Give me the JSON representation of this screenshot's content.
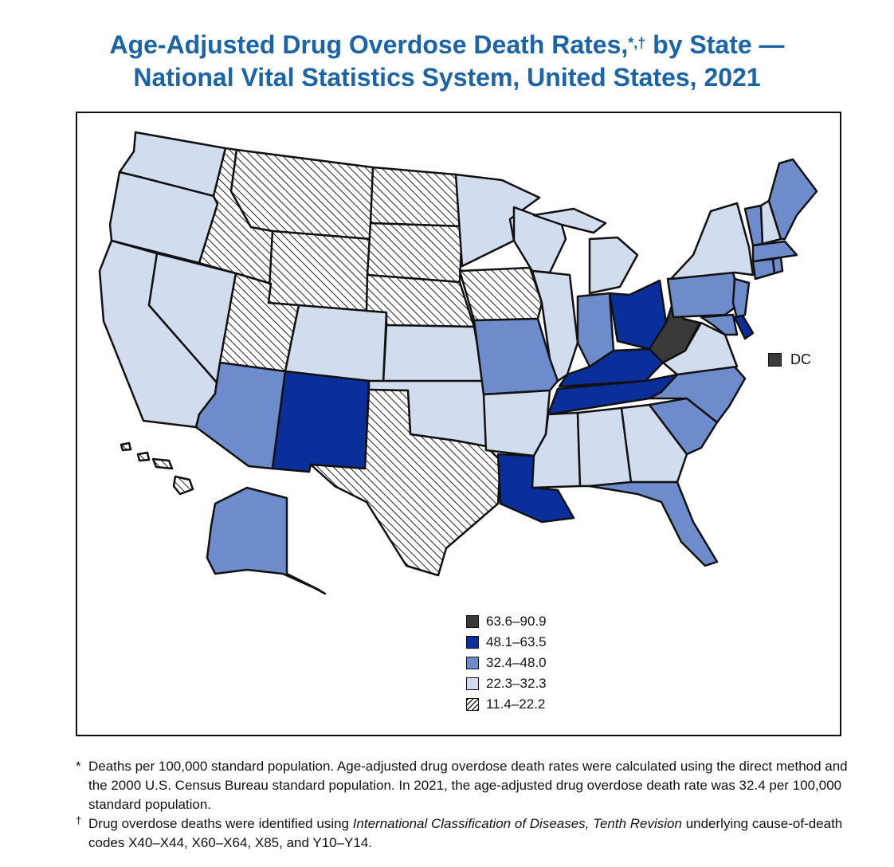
{
  "title": {
    "line1": "Age-Adjusted Drug Overdose Death Rates,",
    "line1_marks": "*,†",
    "line1_end": " by State —",
    "line2": "National Vital Statistics System, United States, 2021"
  },
  "colors": {
    "darkest": "#3a3a3a",
    "dark_blue": "#0a2f9b",
    "mid_blue": "#6e8ccb",
    "light_blue": "#d1dcef",
    "hatched": "#ffffff",
    "title": "#1b64a8"
  },
  "legend": [
    {
      "range": "63.6–90.9",
      "class": "darkest"
    },
    {
      "range": "48.1–63.5",
      "class": "dark_blue"
    },
    {
      "range": "32.4–48.0",
      "class": "mid_blue"
    },
    {
      "range": "22.3–32.3",
      "class": "light_blue"
    },
    {
      "range": "11.4–22.2",
      "class": "hatched"
    }
  ],
  "dc": {
    "label": "DC",
    "class": "darkest"
  },
  "states": {
    "WA": "light_blue",
    "OR": "light_blue",
    "CA": "light_blue",
    "NV": "light_blue",
    "ID": "hatched",
    "MT": "hatched",
    "WY": "hatched",
    "UT": "hatched",
    "AZ": "mid_blue",
    "CO": "light_blue",
    "NM": "dark_blue",
    "ND": "hatched",
    "SD": "hatched",
    "NE": "hatched",
    "KS": "light_blue",
    "OK": "light_blue",
    "TX": "hatched",
    "MN": "light_blue",
    "IA": "hatched",
    "MO": "mid_blue",
    "AR": "light_blue",
    "LA": "dark_blue",
    "WI": "light_blue",
    "IL": "light_blue",
    "MI": "light_blue",
    "IN": "mid_blue",
    "OH": "dark_blue",
    "KY": "dark_blue",
    "TN": "dark_blue",
    "MS": "light_blue",
    "AL": "light_blue",
    "GA": "light_blue",
    "FL": "mid_blue",
    "SC": "mid_blue",
    "NC": "mid_blue",
    "VA": "light_blue",
    "WV": "darkest",
    "PA": "mid_blue",
    "NY": "light_blue",
    "NJ": "mid_blue",
    "DE": "dark_blue",
    "MD": "mid_blue",
    "CT": "mid_blue",
    "RI": "mid_blue",
    "MA": "mid_blue",
    "VT": "mid_blue",
    "NH": "light_blue",
    "ME": "mid_blue",
    "AK": "mid_blue",
    "HI": "hatched"
  },
  "footnotes": {
    "note1_mark": "*",
    "note1": "Deaths per 100,000 standard population. Age-adjusted drug overdose death rates were calculated using the direct method and the 2000 U.S. Census Bureau standard population. In 2021, the age-adjusted drug overdose death rate was 32.4 per 100,000 standard population.",
    "note2_mark": "†",
    "note2_pre": "Drug overdose deaths were identified using ",
    "note2_italic": "International Classification of Diseases, Tenth Revision",
    "note2_post": " underlying cause-of-death codes X40–X44, X60–X64, X85, and Y10–Y14."
  }
}
